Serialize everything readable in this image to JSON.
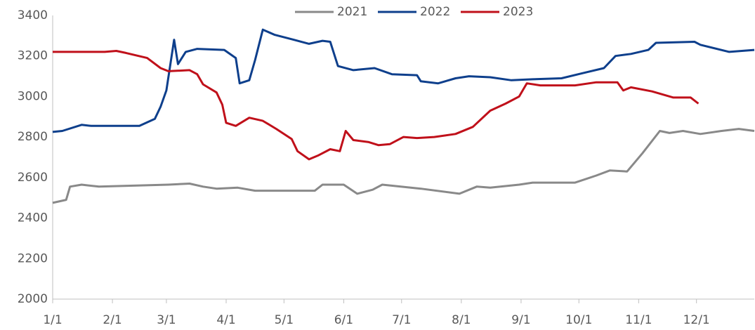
{
  "chart_data": {
    "type": "line",
    "xlim": [
      0,
      364
    ],
    "xticks": [
      {
        "value": 0,
        "label": "1/1"
      },
      {
        "value": 31,
        "label": "2/1"
      },
      {
        "value": 59,
        "label": "3/1"
      },
      {
        "value": 90,
        "label": "4/1"
      },
      {
        "value": 120,
        "label": "5/1"
      },
      {
        "value": 151,
        "label": "6/1"
      },
      {
        "value": 181,
        "label": "7/1"
      },
      {
        "value": 212,
        "label": "8/1"
      },
      {
        "value": 243,
        "label": "9/1"
      },
      {
        "value": 273,
        "label": "10/1"
      },
      {
        "value": 304,
        "label": "11/1"
      },
      {
        "value": 334,
        "label": "12/1"
      }
    ],
    "ylim": [
      2000,
      3400
    ],
    "yticks": [
      2000,
      2200,
      2400,
      2600,
      2800,
      3000,
      3200,
      3400
    ],
    "legend": "top",
    "series": [
      {
        "name": "2021",
        "color": "#898989",
        "x": [
          0,
          7,
          9,
          15,
          24,
          60,
          71,
          78,
          85,
          96,
          105,
          136,
          140,
          151,
          158,
          166,
          171,
          191,
          211,
          220,
          227,
          242,
          249,
          271,
          282,
          289,
          298,
          306,
          315,
          320,
          327,
          336,
          347,
          356,
          364
        ],
        "values": [
          2475,
          2490,
          2555,
          2565,
          2555,
          2565,
          2570,
          2555,
          2545,
          2550,
          2535,
          2535,
          2565,
          2565,
          2520,
          2540,
          2565,
          2545,
          2520,
          2555,
          2550,
          2565,
          2575,
          2575,
          2610,
          2635,
          2630,
          2720,
          2830,
          2820,
          2830,
          2815,
          2830,
          2840,
          2830
        ]
      },
      {
        "name": "2022",
        "color": "#0e3f8c",
        "x": [
          0,
          5,
          15,
          20,
          45,
          53,
          56,
          59,
          63,
          65,
          69,
          75,
          89,
          95,
          97,
          102,
          105,
          109,
          115,
          125,
          133,
          140,
          144,
          148,
          156,
          167,
          176,
          189,
          191,
          200,
          209,
          216,
          227,
          238,
          249,
          264,
          275,
          286,
          292,
          300,
          309,
          313,
          333,
          336,
          351,
          364
        ],
        "values": [
          2825,
          2830,
          2860,
          2855,
          2855,
          2890,
          2950,
          3030,
          3280,
          3160,
          3220,
          3235,
          3230,
          3190,
          3065,
          3080,
          3180,
          3330,
          3305,
          3280,
          3260,
          3275,
          3270,
          3150,
          3130,
          3140,
          3110,
          3105,
          3075,
          3065,
          3090,
          3100,
          3095,
          3080,
          3085,
          3090,
          3115,
          3140,
          3200,
          3210,
          3230,
          3265,
          3270,
          3255,
          3220,
          3230
        ]
      },
      {
        "name": "2023",
        "color": "#c0101a",
        "x": [
          0,
          27,
          33,
          38,
          49,
          56,
          60,
          71,
          75,
          78,
          85,
          88,
          90,
          95,
          102,
          109,
          116,
          124,
          127,
          133,
          138,
          144,
          149,
          152,
          156,
          164,
          169,
          175,
          182,
          189,
          198,
          209,
          218,
          227,
          235,
          242,
          246,
          253,
          271,
          282,
          293,
          296,
          300,
          311,
          322,
          331,
          335
        ],
        "values": [
          3220,
          3220,
          3225,
          3215,
          3190,
          3140,
          3125,
          3130,
          3110,
          3060,
          3020,
          2960,
          2870,
          2855,
          2895,
          2880,
          2840,
          2790,
          2730,
          2690,
          2710,
          2740,
          2730,
          2830,
          2785,
          2775,
          2760,
          2765,
          2800,
          2795,
          2800,
          2815,
          2850,
          2930,
          2965,
          3000,
          3065,
          3055,
          3055,
          3070,
          3070,
          3030,
          3045,
          3025,
          2995,
          2995,
          2965
        ]
      }
    ]
  }
}
